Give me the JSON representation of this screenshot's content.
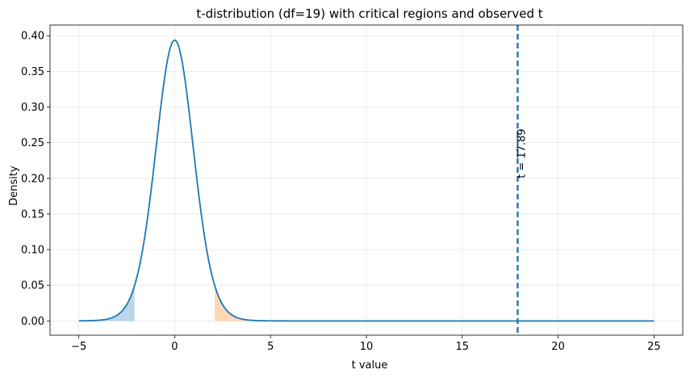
{
  "chart_data": {
    "type": "line",
    "title": "t-distribution (df=19) with critical regions and observed t",
    "xlabel": "t value",
    "ylabel": "Density",
    "df": 19,
    "xlim": [
      -6.5,
      26.5
    ],
    "ylim": [
      -0.02,
      0.415
    ],
    "xticks": [
      -5,
      0,
      5,
      10,
      15,
      20,
      25
    ],
    "yticks": [
      0.0,
      0.05,
      0.1,
      0.15,
      0.2,
      0.25,
      0.3,
      0.35,
      0.4
    ],
    "ytick_labels": [
      "0.00",
      "0.05",
      "0.10",
      "0.15",
      "0.20",
      "0.25",
      "0.30",
      "0.35",
      "0.40"
    ],
    "xtick_labels": [
      "−5",
      "0",
      "5",
      "10",
      "15",
      "20",
      "25"
    ],
    "curve": {
      "x_range": [
        -5,
        25
      ],
      "color": "#1f77b4"
    },
    "critical_regions": [
      {
        "from": -5,
        "to": -2.093,
        "color": "#1f77b4",
        "opacity": 0.3
      },
      {
        "from": 2.093,
        "to": 25,
        "color": "#ff7f0e",
        "opacity": 0.3
      }
    ],
    "observed": {
      "t": 17.89,
      "label": "t = 17.89",
      "color": "#1f77b4"
    },
    "grid": true
  }
}
